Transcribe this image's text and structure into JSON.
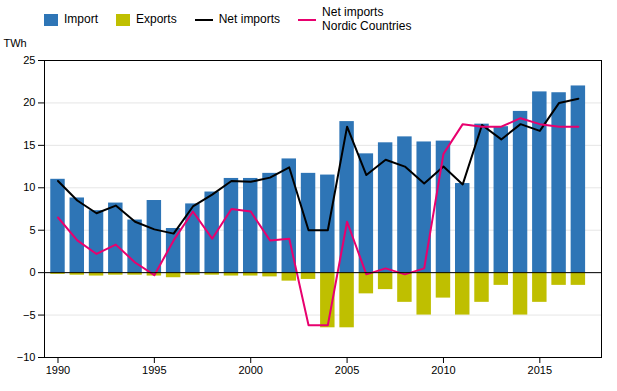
{
  "chart_data": {
    "type": "bar",
    "ylabel": "TWh",
    "x": [
      1990,
      1991,
      1992,
      1993,
      1994,
      1995,
      1996,
      1997,
      1998,
      1999,
      2000,
      2001,
      2002,
      2003,
      2004,
      2005,
      2006,
      2007,
      2008,
      2009,
      2010,
      2011,
      2012,
      2013,
      2014,
      2015,
      2016,
      2017
    ],
    "series": [
      {
        "name": "Import",
        "type": "bar",
        "color": "#2e75b6",
        "values": [
          11.0,
          8.8,
          7.3,
          8.2,
          6.2,
          8.5,
          5.2,
          8.1,
          9.5,
          11.1,
          11.1,
          11.7,
          13.4,
          11.7,
          11.5,
          17.8,
          14.0,
          15.3,
          16.0,
          15.4,
          15.5,
          10.5,
          17.5,
          17.2,
          19.0,
          21.3,
          21.2,
          22.0
        ]
      },
      {
        "name": "Exports",
        "type": "bar",
        "color": "#bfbf00",
        "values": [
          -0.2,
          -0.3,
          -0.4,
          -0.3,
          -0.3,
          -0.4,
          -0.6,
          -0.3,
          -0.3,
          -0.4,
          -0.4,
          -0.5,
          -1.0,
          -0.8,
          -6.5,
          -6.5,
          -2.5,
          -2.0,
          -3.5,
          -5.0,
          -3.0,
          -5.0,
          -3.5,
          -1.5,
          -5.0,
          -3.5,
          -1.5,
          -1.5
        ]
      },
      {
        "name": "Net imports",
        "type": "line",
        "color": "#000000",
        "values": [
          10.8,
          8.5,
          7.0,
          7.9,
          6.0,
          5.1,
          4.6,
          7.8,
          9.2,
          10.8,
          10.7,
          11.2,
          12.4,
          5.0,
          5.0,
          17.2,
          11.5,
          13.3,
          12.5,
          10.5,
          12.5,
          10.4,
          17.4,
          15.7,
          17.5,
          16.7,
          20.0,
          20.5
        ]
      },
      {
        "name": "Net imports\nNordic Countries",
        "type": "line",
        "color": "#e8006e",
        "values": [
          6.5,
          3.8,
          2.2,
          3.3,
          1.2,
          -0.3,
          3.8,
          7.2,
          4.0,
          7.5,
          7.2,
          3.8,
          4.0,
          -6.2,
          -6.2,
          6.0,
          -0.2,
          0.5,
          -0.2,
          0.5,
          14.0,
          17.5,
          17.2,
          17.2,
          18.2,
          17.5,
          17.2,
          17.2
        ]
      }
    ],
    "xlim": [
      1989.3,
      2018.2
    ],
    "xticks": [
      1990,
      1995,
      2000,
      2005,
      2010,
      2015
    ],
    "ylim": [
      -10,
      25
    ],
    "yticks": [
      -10,
      -5,
      0,
      5,
      10,
      15,
      20,
      25
    ],
    "grid": true,
    "legend": "upper left"
  }
}
